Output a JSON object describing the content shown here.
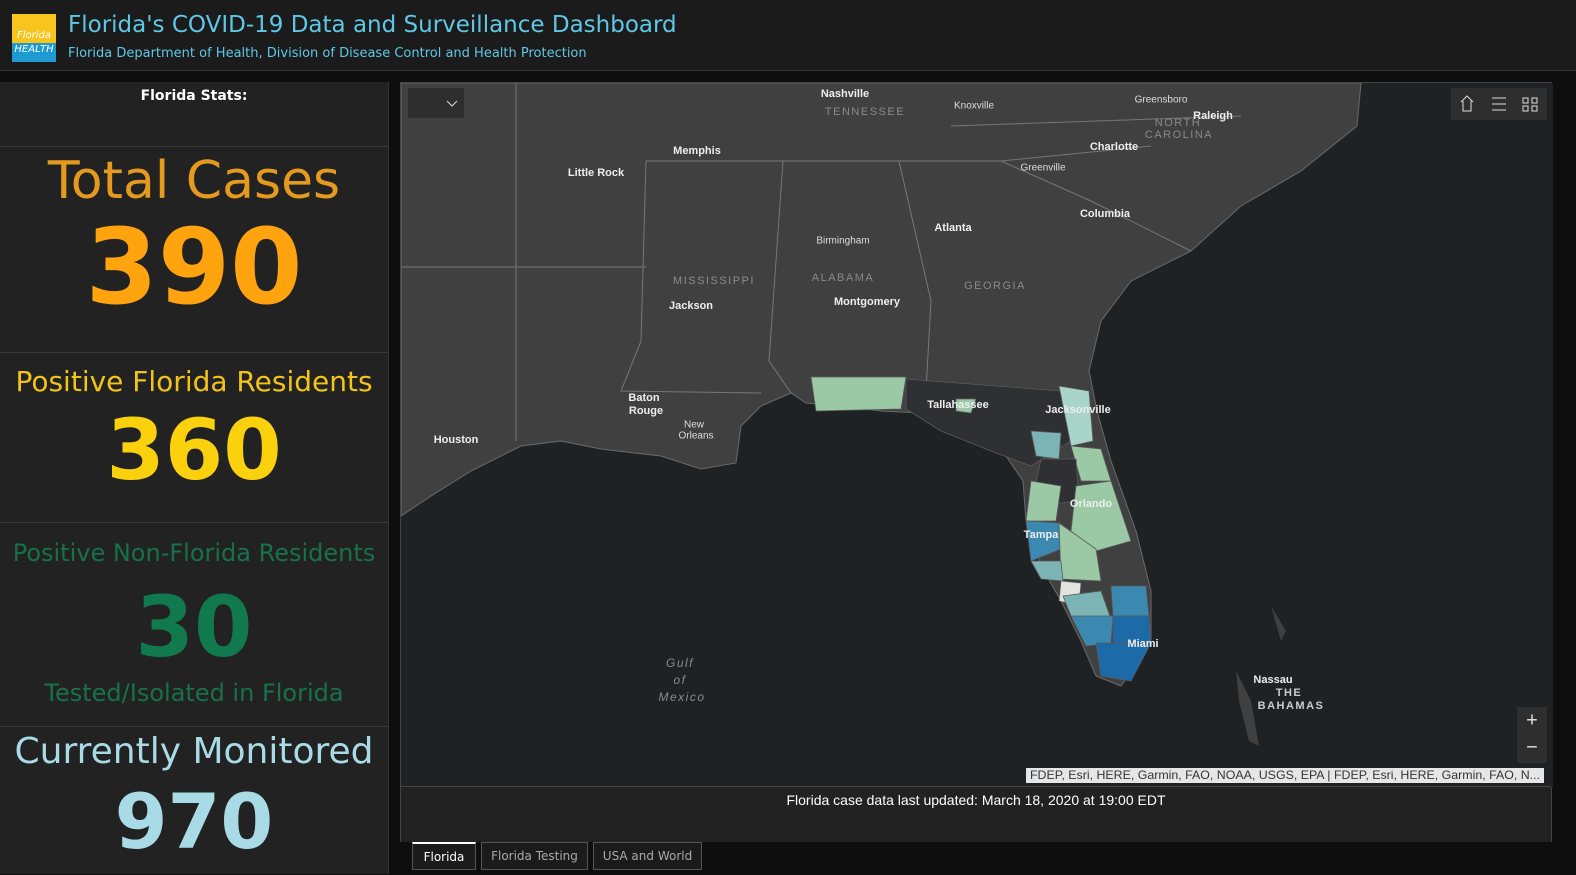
{
  "header": {
    "logo_text": [
      "Florida",
      "HEALTH"
    ],
    "title": "Florida's COVID-19 Data and Surveillance Dashboard",
    "subtitle": "Florida Department of Health, Division of Disease Control and Health Protection"
  },
  "stats": {
    "heading": "Florida Stats:",
    "items": [
      {
        "label": "Total Cases",
        "value": 390
      },
      {
        "label": "Positive Florida Residents",
        "value": 360
      },
      {
        "label": "Positive Non-Florida Residents",
        "value": 30,
        "note": "Tested/Isolated in Florida"
      },
      {
        "label": "Currently Monitored",
        "value": 970
      }
    ]
  },
  "map": {
    "labels": [
      "Nashville",
      "TENNESSEE",
      "Knoxville",
      "Greensboro",
      "Raleigh",
      "NORTH",
      "CAROLINA",
      "Memphis",
      "Little Rock",
      "Charlotte",
      "Greenville",
      "Columbia",
      "Birmingham",
      "Atlanta",
      "MISSISSIPPI",
      "ALABAMA",
      "GEORGIA",
      "Montgomery",
      "Jackson",
      "Baton",
      "Rouge",
      "New",
      "Orleans",
      "Houston",
      "Tallahassee",
      "Jacksonville",
      "Orlando",
      "Tampa",
      "Miami",
      "Gulf",
      "of",
      "Mexico",
      "Nassau",
      "THE",
      "BAHAMAS"
    ],
    "attribution": "FDEP, Esri, HERE, Garmin, FAO, NOAA, USGS, EPA | FDEP, Esri, HERE, Garmin, FAO, N...",
    "zoom": [
      "+",
      "−"
    ]
  },
  "footer_note": "Florida case data last updated: March 18, 2020 at 19:00 EDT",
  "tabs": [
    "Florida",
    "Florida Testing",
    "USA and World"
  ]
}
